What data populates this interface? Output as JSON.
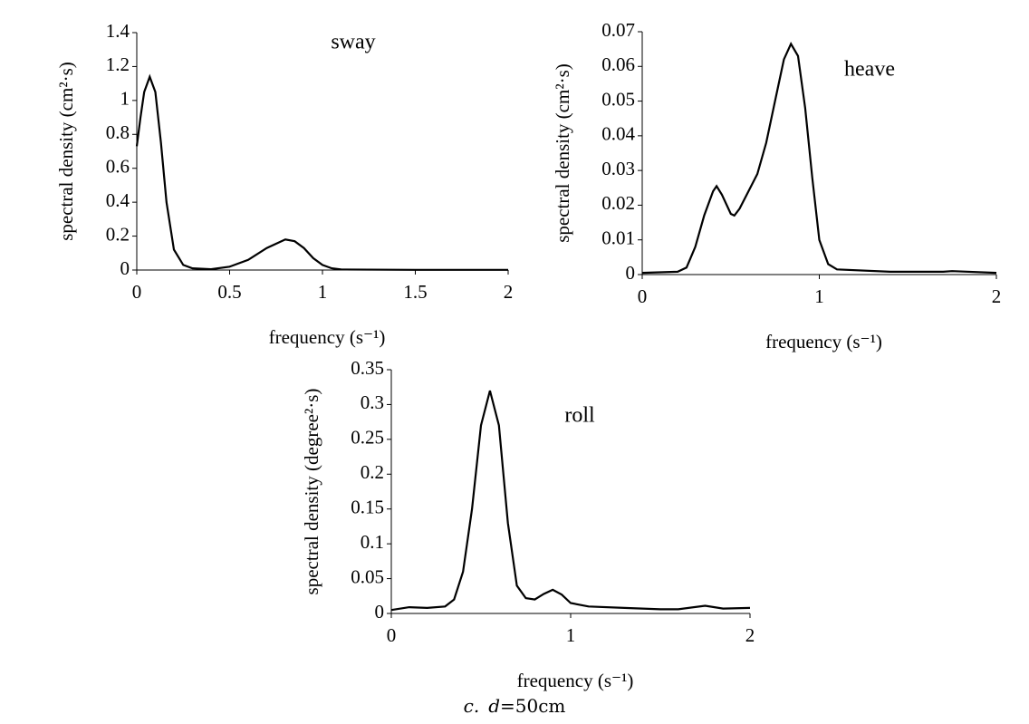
{
  "chart_data": [
    {
      "type": "line",
      "annotation": "sway",
      "xlabel": "frequency (s⁻¹)",
      "ylabel": "spectral density (cm²·s)",
      "color": "#000000",
      "x": [
        0,
        0.02,
        0.04,
        0.07,
        0.1,
        0.13,
        0.16,
        0.2,
        0.25,
        0.3,
        0.4,
        0.5,
        0.6,
        0.7,
        0.8,
        0.85,
        0.9,
        0.95,
        1.0,
        1.05,
        1.1,
        1.5,
        2
      ],
      "values": [
        0.73,
        0.9,
        1.05,
        1.14,
        1.05,
        0.75,
        0.4,
        0.12,
        0.03,
        0.01,
        0.005,
        0.02,
        0.06,
        0.13,
        0.18,
        0.17,
        0.13,
        0.07,
        0.03,
        0.01,
        0.003,
        0.001,
        0.001
      ],
      "xlim": [
        0,
        2
      ],
      "xticks": [
        0,
        0.5,
        1,
        1.5,
        2
      ],
      "ylim": [
        0,
        1.4
      ],
      "yticks": [
        0,
        0.2,
        0.4,
        0.6,
        0.8,
        1,
        1.2,
        1.4
      ]
    },
    {
      "type": "line",
      "annotation": "heave",
      "xlabel": "frequency (s⁻¹)",
      "ylabel": "spectral density (cm²·s)",
      "color": "#000000",
      "x": [
        0,
        0.2,
        0.25,
        0.3,
        0.35,
        0.4,
        0.42,
        0.45,
        0.5,
        0.52,
        0.55,
        0.6,
        0.65,
        0.7,
        0.75,
        0.8,
        0.84,
        0.88,
        0.92,
        0.96,
        1.0,
        1.05,
        1.1,
        1.4,
        1.7,
        1.75,
        2
      ],
      "values": [
        0.0005,
        0.0008,
        0.002,
        0.008,
        0.017,
        0.024,
        0.0255,
        0.023,
        0.0175,
        0.017,
        0.019,
        0.024,
        0.029,
        0.038,
        0.05,
        0.062,
        0.0665,
        0.063,
        0.048,
        0.028,
        0.01,
        0.003,
        0.0015,
        0.0008,
        0.0008,
        0.001,
        0.0005
      ],
      "xlim": [
        0,
        2
      ],
      "xticks": [
        0,
        1,
        2
      ],
      "ylim": [
        0,
        0.07
      ],
      "yticks": [
        0,
        0.01,
        0.02,
        0.03,
        0.04,
        0.05,
        0.06,
        0.07
      ]
    },
    {
      "type": "line",
      "annotation": "roll",
      "xlabel": "frequency (s⁻¹)",
      "ylabel": "spectral density (degree²·s)",
      "color": "#000000",
      "x": [
        0,
        0.1,
        0.2,
        0.3,
        0.35,
        0.4,
        0.45,
        0.5,
        0.55,
        0.6,
        0.65,
        0.7,
        0.75,
        0.8,
        0.85,
        0.9,
        0.95,
        1.0,
        1.1,
        1.3,
        1.5,
        1.6,
        1.75,
        1.85,
        2
      ],
      "values": [
        0.005,
        0.009,
        0.008,
        0.01,
        0.02,
        0.06,
        0.15,
        0.27,
        0.32,
        0.27,
        0.13,
        0.04,
        0.022,
        0.02,
        0.028,
        0.034,
        0.027,
        0.015,
        0.01,
        0.008,
        0.006,
        0.006,
        0.011,
        0.007,
        0.008
      ],
      "xlim": [
        0,
        2
      ],
      "xticks": [
        0,
        1,
        2
      ],
      "ylim": [
        0,
        0.35
      ],
      "yticks": [
        0,
        0.05,
        0.1,
        0.15,
        0.2,
        0.25,
        0.3,
        0.35
      ]
    }
  ],
  "caption": {
    "prefix": "c.",
    "variable": "d",
    "rest": "=50cm"
  }
}
